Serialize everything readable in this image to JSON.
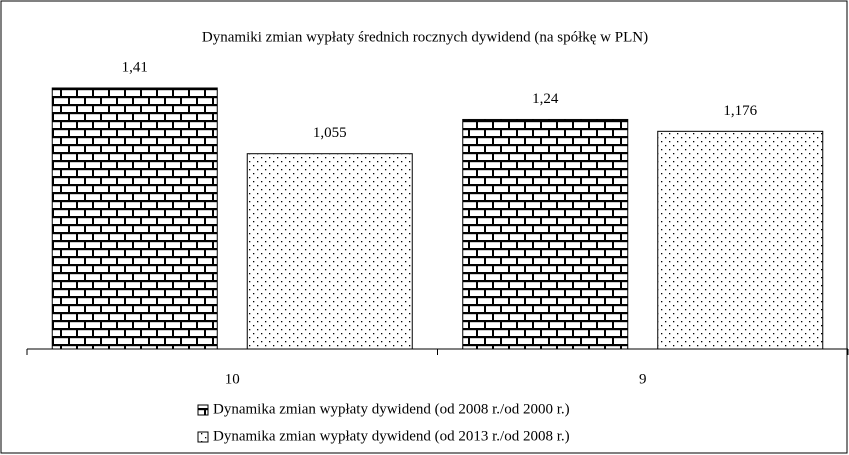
{
  "chart_data": {
    "type": "bar",
    "title": "Dynamiki zmian wypłaty średnich rocznych dywidend (na spółkę w PLN)",
    "categories": [
      "10",
      "9"
    ],
    "series": [
      {
        "name": "Dynamika zmian wypłaty dywidend (od 2008 r./od 2000 r.)",
        "pattern": "brick",
        "color": "#000000",
        "values": [
          1.41,
          1.24
        ],
        "value_labels": [
          "1,41",
          "1,24"
        ]
      },
      {
        "name": "Dynamika zmian wypłaty dywidend (od 2013 r./od 2008 r.)",
        "pattern": "dots",
        "color": "#000000",
        "values": [
          1.055,
          1.176
        ],
        "value_labels": [
          "1,055",
          "1,176"
        ]
      }
    ]
  }
}
